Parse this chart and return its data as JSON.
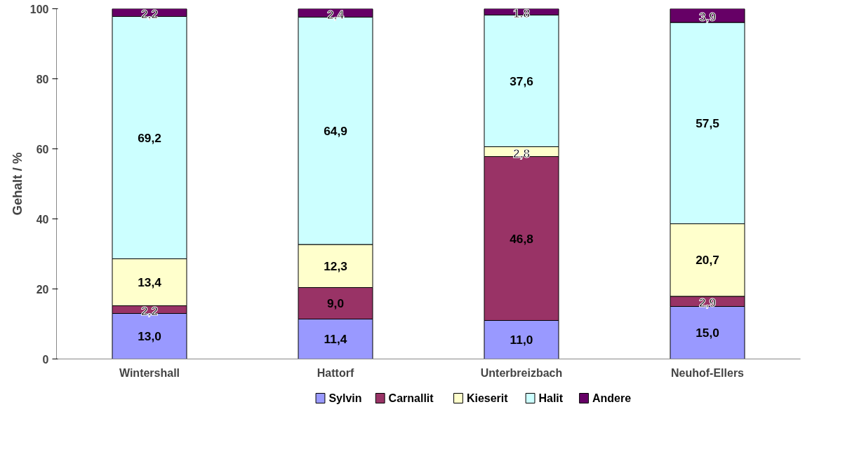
{
  "chart_data": {
    "type": "bar",
    "stacked": true,
    "ylabel": "Gehalt / %",
    "categories": [
      "Wintershall",
      "Hattorf",
      "Unterbreizbach",
      "Neuhof-Ellers"
    ],
    "ylim": [
      0,
      100
    ],
    "yticks": [
      0,
      20,
      40,
      60,
      80,
      100
    ],
    "grid": false,
    "legend": "bottom",
    "series": [
      {
        "name": "Sylvin",
        "color": "#9999ff",
        "values": [
          13.0,
          11.4,
          11.0,
          15.0
        ],
        "value_labels": [
          "13,0",
          "11,4",
          "11,0",
          "15,0"
        ]
      },
      {
        "name": "Carnallit",
        "color": "#993366",
        "values": [
          2.2,
          9.0,
          46.8,
          2.9
        ],
        "value_labels": [
          "2,2",
          "9,0",
          "46,8",
          "2,9"
        ]
      },
      {
        "name": "Kieserit",
        "color": "#ffffcc",
        "values": [
          13.4,
          12.3,
          2.8,
          20.7
        ],
        "value_labels": [
          "13,4",
          "12,3",
          "2,8",
          "20,7"
        ]
      },
      {
        "name": "Halit",
        "color": "#ccffff",
        "values": [
          69.2,
          64.9,
          37.6,
          57.5
        ],
        "value_labels": [
          "69,2",
          "64,9",
          "37,6",
          "57,5"
        ]
      },
      {
        "name": "Andere",
        "color": "#660066",
        "values": [
          2.2,
          2.4,
          1.8,
          3.9
        ],
        "value_labels": [
          "2,2",
          "2,4",
          "1.8",
          "3,9"
        ]
      }
    ]
  }
}
